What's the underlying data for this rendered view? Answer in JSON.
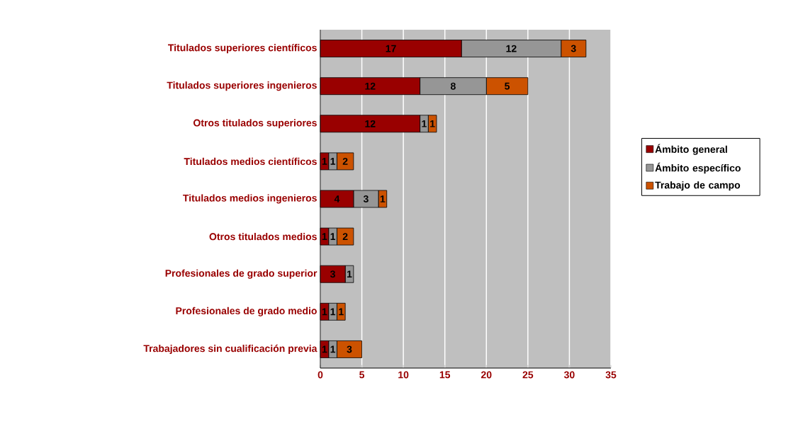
{
  "chart_data": {
    "type": "bar",
    "orientation": "horizontal",
    "stacked": true,
    "categories": [
      "Titulados superiores científicos",
      "Titulados superiores ingenieros",
      "Otros titulados superiores",
      "Titulados medios científicos",
      "Titulados medios ingenieros",
      "Otros titulados medios",
      "Profesionales de grado superior",
      "Profesionales de grado medio",
      "Trabajadores sin cualificación previa"
    ],
    "series": [
      {
        "name": "Ámbito general",
        "color": "#990000",
        "values": [
          17,
          12,
          12,
          1,
          4,
          1,
          3,
          1,
          1
        ]
      },
      {
        "name": "Ámbito específico",
        "color": "#969696",
        "values": [
          12,
          8,
          1,
          1,
          3,
          1,
          1,
          1,
          1
        ]
      },
      {
        "name": "Trabajo de campo",
        "color": "#cc5200",
        "values": [
          3,
          5,
          1,
          2,
          1,
          2,
          null,
          1,
          3
        ]
      }
    ],
    "xlim": [
      0,
      35
    ],
    "xticks": [
      0,
      5,
      10,
      15,
      20,
      25,
      30,
      35
    ],
    "grid": "x",
    "legend": "right",
    "data_labels": true
  }
}
